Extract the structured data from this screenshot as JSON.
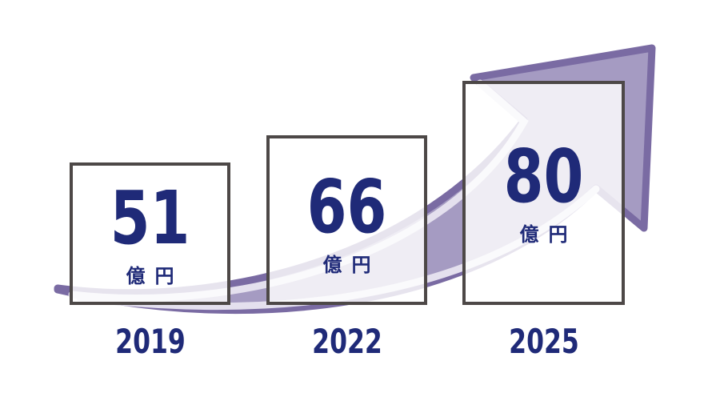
{
  "chart_data": {
    "type": "bar",
    "categories": [
      "2019",
      "2022",
      "2025"
    ],
    "values": [
      51,
      66,
      80
    ],
    "unit": "億円",
    "title": "",
    "xlabel": "",
    "ylabel": ""
  },
  "colors": {
    "arrow_fill": "#a59bc2",
    "arrow_stroke": "#7a6ba3",
    "highlight": "#e4e0ee",
    "text": "#1f2a78",
    "box_border": "#4d4847"
  }
}
